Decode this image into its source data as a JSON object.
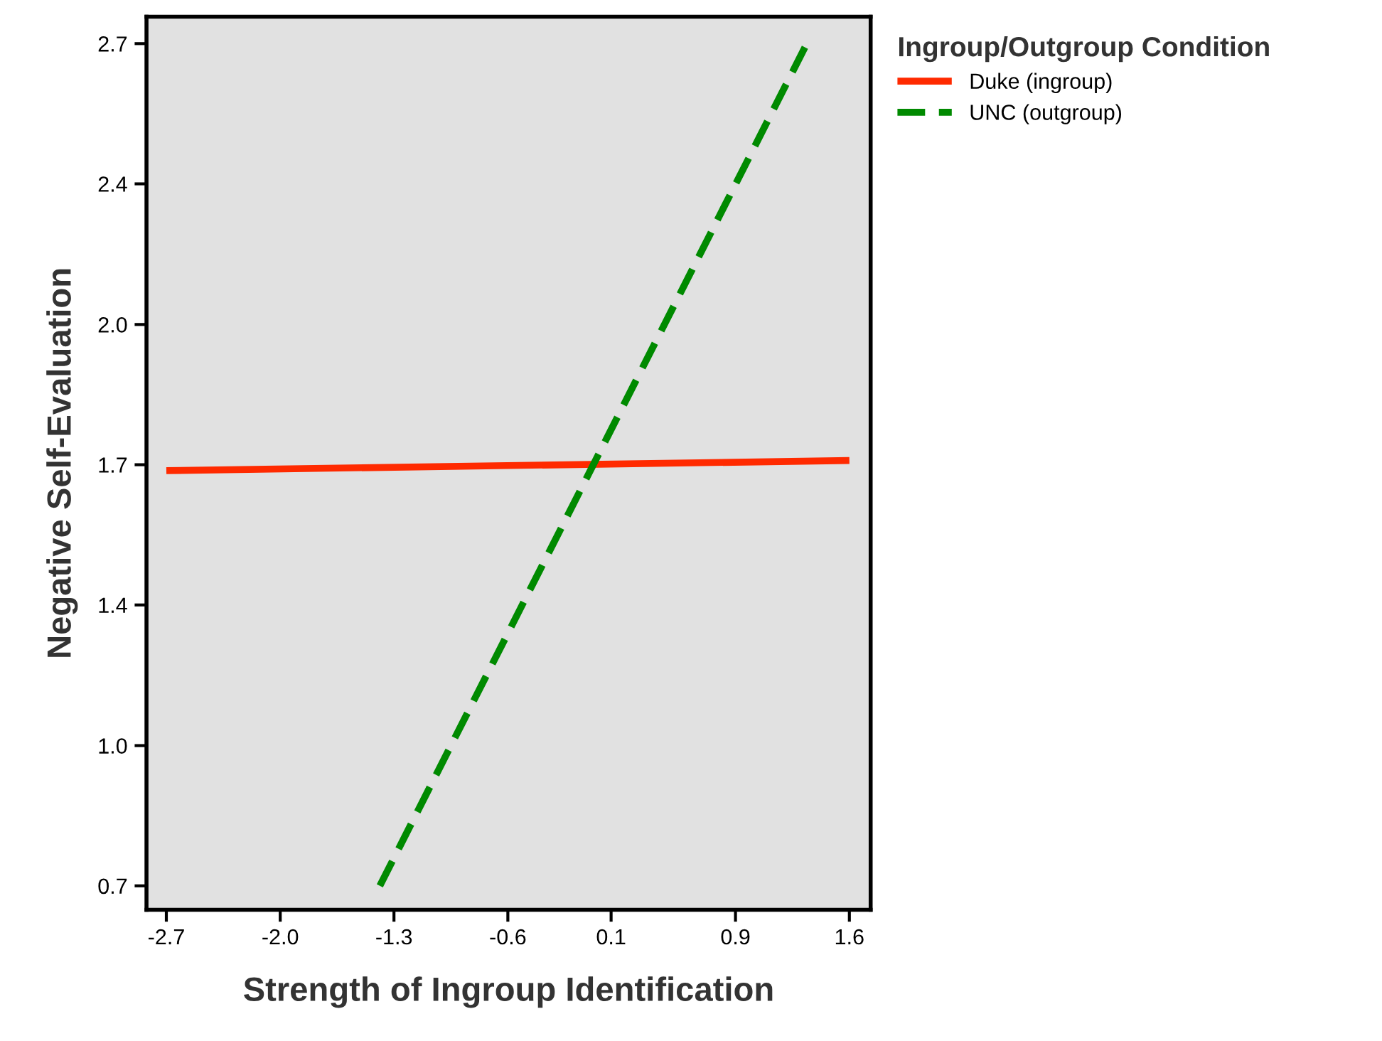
{
  "chart_data": {
    "type": "line",
    "xlabel": "Strength of Ingroup Identification",
    "ylabel": "Negative Self-Evaluation",
    "legend_title": "Ingroup/Outgroup Condition",
    "legend": "top right",
    "grid": false,
    "xlim": [
      -2.825,
      1.734
    ],
    "ylim": [
      0.643,
      2.764
    ],
    "xticks": [
      {
        "value": -2.7,
        "label": "-2.7"
      },
      {
        "value": -1.983,
        "label": "-2.0"
      },
      {
        "value": -1.267,
        "label": "-1.3"
      },
      {
        "value": -0.55,
        "label": "-0.6"
      },
      {
        "value": 0.1,
        "label": "0.1"
      },
      {
        "value": 0.883,
        "label": "0.9"
      },
      {
        "value": 1.6,
        "label": "1.6"
      }
    ],
    "yticks": [
      {
        "value": 0.7,
        "label": "0.7"
      },
      {
        "value": 1.033,
        "label": "1.0"
      },
      {
        "value": 1.367,
        "label": "1.4"
      },
      {
        "value": 1.7,
        "label": "1.7"
      },
      {
        "value": 2.033,
        "label": "2.0"
      },
      {
        "value": 2.367,
        "label": "2.4"
      },
      {
        "value": 2.7,
        "label": "2.7"
      }
    ],
    "series": [
      {
        "name": "Duke (ingroup)",
        "color": "#ff2a00",
        "line_style": "solid",
        "x": [
          -2.7,
          1.6
        ],
        "values": [
          1.686,
          1.71
        ]
      },
      {
        "name": "UNC (outgroup)",
        "color": "#008a00",
        "line_style": "dashed",
        "x": [
          -1.356,
          1.332
        ],
        "values": [
          0.7,
          2.7
        ]
      }
    ]
  }
}
